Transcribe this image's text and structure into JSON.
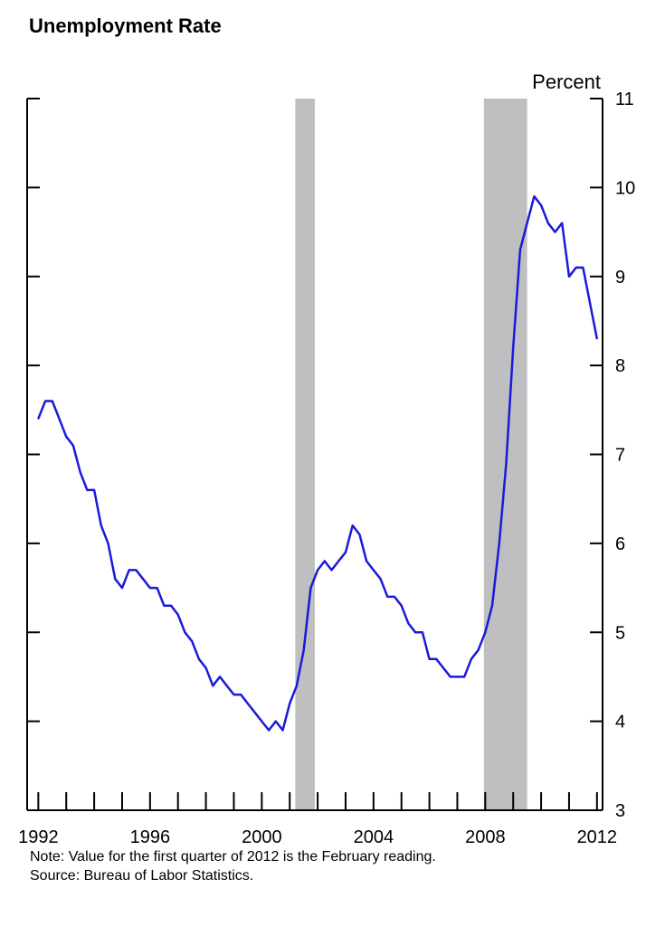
{
  "chart_data": {
    "type": "line",
    "title": "Unemployment Rate",
    "y_unit_label": "Percent",
    "ylim": [
      3,
      11
    ],
    "xlim": [
      1991.6,
      2012.2
    ],
    "y_ticks": [
      3,
      4,
      5,
      6,
      7,
      8,
      9,
      10,
      11
    ],
    "x_tick_labels": [
      1992,
      1996,
      2000,
      2004,
      2008,
      2012
    ],
    "recessions": [
      {
        "start": 2001.2,
        "end": 2001.9
      },
      {
        "start": 2007.95,
        "end": 2009.5
      }
    ],
    "grid": false,
    "series": [
      {
        "color": "#1a1adb",
        "x": [
          1992.0,
          1992.25,
          1992.5,
          1992.75,
          1993.0,
          1993.25,
          1993.5,
          1993.75,
          1994.0,
          1994.25,
          1994.5,
          1994.75,
          1995.0,
          1995.25,
          1995.5,
          1995.75,
          1996.0,
          1996.25,
          1996.5,
          1996.75,
          1997.0,
          1997.25,
          1997.5,
          1997.75,
          1998.0,
          1998.25,
          1998.5,
          1998.75,
          1999.0,
          1999.25,
          1999.5,
          1999.75,
          2000.0,
          2000.25,
          2000.5,
          2000.75,
          2001.0,
          2001.25,
          2001.5,
          2001.75,
          2002.0,
          2002.25,
          2002.5,
          2002.75,
          2003.0,
          2003.25,
          2003.5,
          2003.75,
          2004.0,
          2004.25,
          2004.5,
          2004.75,
          2005.0,
          2005.25,
          2005.5,
          2005.75,
          2006.0,
          2006.25,
          2006.5,
          2006.75,
          2007.0,
          2007.25,
          2007.5,
          2007.75,
          2008.0,
          2008.25,
          2008.5,
          2008.75,
          2009.0,
          2009.25,
          2009.5,
          2009.75,
          2010.0,
          2010.25,
          2010.5,
          2010.75,
          2011.0,
          2011.25,
          2011.5,
          2011.75,
          2012.0
        ],
        "values": [
          7.4,
          7.6,
          7.6,
          7.4,
          7.2,
          7.1,
          6.8,
          6.6,
          6.6,
          6.2,
          6.0,
          5.6,
          5.5,
          5.7,
          5.7,
          5.6,
          5.5,
          5.5,
          5.3,
          5.3,
          5.2,
          5.0,
          4.9,
          4.7,
          4.6,
          4.4,
          4.5,
          4.4,
          4.3,
          4.3,
          4.2,
          4.1,
          4.0,
          3.9,
          4.0,
          3.9,
          4.2,
          4.4,
          4.8,
          5.5,
          5.7,
          5.8,
          5.7,
          5.8,
          5.9,
          6.2,
          6.1,
          5.8,
          5.7,
          5.6,
          5.4,
          5.4,
          5.3,
          5.1,
          5.0,
          5.0,
          4.7,
          4.7,
          4.6,
          4.5,
          4.5,
          4.5,
          4.7,
          4.8,
          5.0,
          5.3,
          6.0,
          6.9,
          8.2,
          9.3,
          9.6,
          9.9,
          9.8,
          9.6,
          9.5,
          9.6,
          9.0,
          9.1,
          9.1,
          8.7,
          8.3
        ]
      }
    ]
  },
  "notes": {
    "note": "Note: Value for the first quarter of 2012 is the February reading.",
    "source": "Source: Bureau of Labor Statistics."
  }
}
